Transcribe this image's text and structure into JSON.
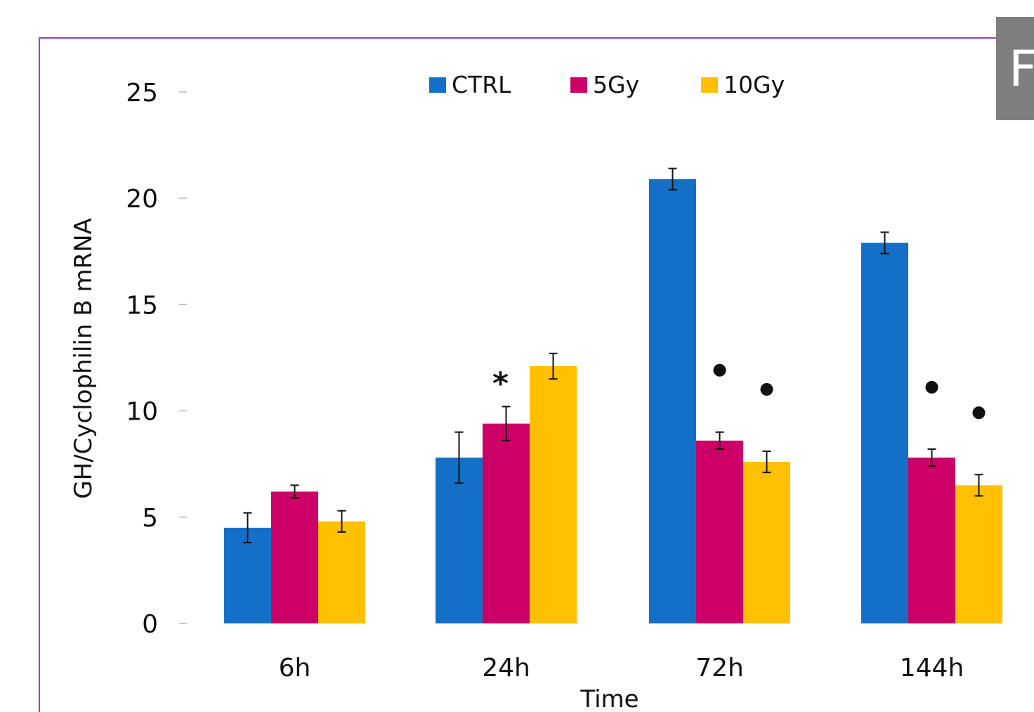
{
  "panel_label": "F",
  "chart_data": {
    "type": "bar",
    "title": "",
    "xlabel": "Time",
    "ylabel": "GH/Cyclophilin B mRNA",
    "categories": [
      "6h",
      "24h",
      "72h",
      "144h"
    ],
    "ylim": [
      0,
      25
    ],
    "yticks": [
      "0",
      "5",
      "10",
      "15",
      "20",
      "25"
    ],
    "legend_position": "top-center",
    "grid": false,
    "series": [
      {
        "name": "CTRL",
        "color": "#1470C7",
        "values": [
          4.5,
          7.8,
          20.9,
          17.9
        ],
        "errors": [
          0.7,
          1.2,
          0.5,
          0.5
        ]
      },
      {
        "name": "5Gy",
        "color": "#CC0066",
        "values": [
          6.2,
          9.4,
          8.6,
          7.8
        ],
        "errors": [
          0.3,
          0.8,
          0.4,
          0.4
        ]
      },
      {
        "name": "10Gy",
        "color": "#FFC000",
        "values": [
          4.8,
          12.1,
          7.6,
          6.5
        ],
        "errors": [
          0.5,
          0.6,
          0.5,
          0.5
        ]
      }
    ],
    "annotations": [
      {
        "category": "24h",
        "series": "5Gy",
        "text": "*"
      },
      {
        "category": "72h",
        "series": "5Gy",
        "text": "●"
      },
      {
        "category": "72h",
        "series": "10Gy",
        "text": "●"
      },
      {
        "category": "144h",
        "series": "5Gy",
        "text": "●"
      },
      {
        "category": "144h",
        "series": "10Gy",
        "text": "●"
      }
    ]
  }
}
